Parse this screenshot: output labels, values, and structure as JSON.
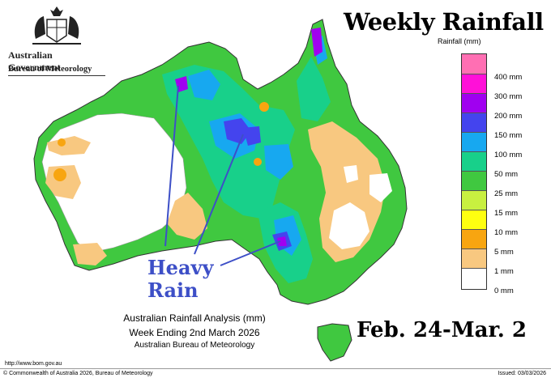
{
  "header": {
    "gov_name": "Australian Government",
    "bureau_name": "Bureau of Meteorology",
    "title": "Weekly Rainfall"
  },
  "legend": {
    "title": "Rainfall (mm)",
    "items": [
      {
        "label": "400 mm",
        "color": "#ff6fb3"
      },
      {
        "label": "300 mm",
        "color": "#ff10d8"
      },
      {
        "label": "200 mm",
        "color": "#a000f0"
      },
      {
        "label": "150 mm",
        "color": "#4444ee"
      },
      {
        "label": "100 mm",
        "color": "#17a8f0"
      },
      {
        "label": "50 mm",
        "color": "#18d08a"
      },
      {
        "label": "25 mm",
        "color": "#40c840"
      },
      {
        "label": "15 mm",
        "color": "#c8f040"
      },
      {
        "label": "10 mm",
        "color": "#ffff10"
      },
      {
        "label": "5 mm",
        "color": "#f8a510"
      },
      {
        "label": "1 mm",
        "color": "#f8c880"
      },
      {
        "label": "0 mm",
        "color": "#ffffff"
      }
    ]
  },
  "annotation": {
    "line1": "Heavy",
    "line2": "Rain",
    "color": "#3d4fc7"
  },
  "analysis": {
    "line1": "Australian Rainfall Analysis (mm)",
    "line2": "Week Ending 2nd March 2026",
    "line3": "Australian Bureau of Meteorology"
  },
  "date_range": "Feb. 24-Mar. 2",
  "footer": {
    "url": "http://www.bom.gov.au",
    "copyright": "© Commonwealth of Australia 2026, Bureau of Meteorology",
    "issued": "Issued: 03/03/2026"
  }
}
